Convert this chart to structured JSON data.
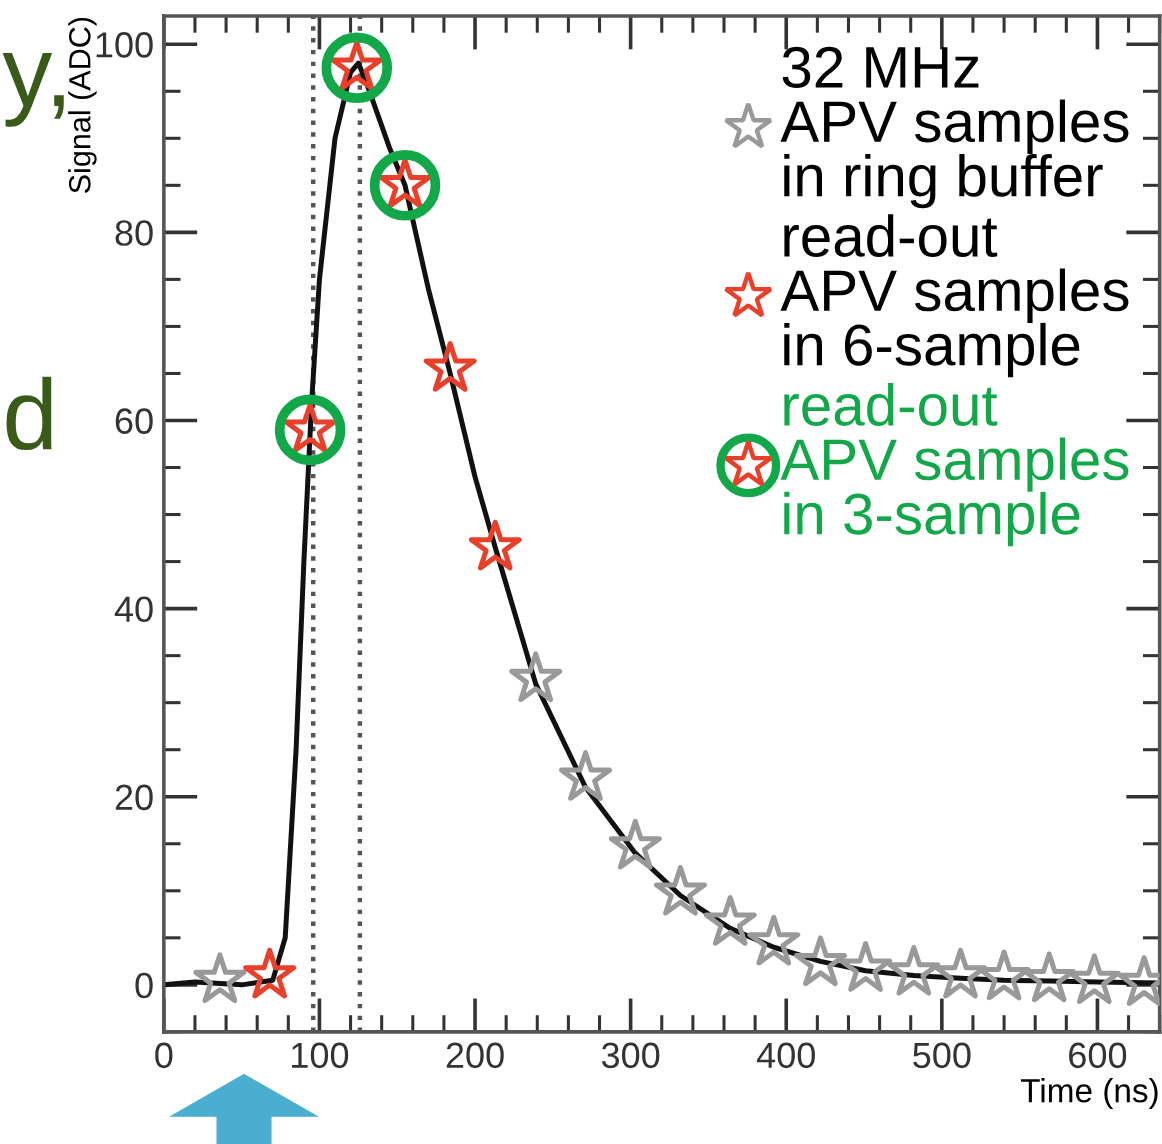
{
  "chart_data": {
    "type": "scatter",
    "xlabel": "Time (ns)",
    "ylabel": "Signal (ADC)",
    "xlim": [
      0,
      640
    ],
    "xticks": [
      0,
      100,
      200,
      300,
      400,
      500,
      600
    ],
    "ylim": [
      -5,
      103
    ],
    "yticks": [
      0,
      20,
      40,
      60,
      80,
      100
    ],
    "grid": false,
    "legend": "top right",
    "series": [
      {
        "type": "line",
        "color": "#111111",
        "marker": "none",
        "line_style": "solid",
        "x": [
          0,
          20,
          50,
          70,
          78,
          85,
          90,
          95,
          100,
          110,
          120,
          125,
          130,
          145,
          155,
          170,
          184,
          200,
          213,
          239,
          271,
          303,
          332,
          364,
          392,
          422,
          451,
          482,
          512,
          540,
          570,
          600,
          640
        ],
        "values": [
          0,
          0.3,
          0,
          0.5,
          5,
          25,
          45,
          62,
          75,
          90,
          97,
          98,
          96,
          89,
          85,
          74,
          65,
          54,
          46.5,
          32,
          21,
          14,
          9.5,
          6,
          4,
          2.5,
          1.5,
          1,
          0.7,
          0.5,
          0.4,
          0.3,
          0.2
        ]
      },
      {
        "name": "32 MHz\nAPV samples\nin ring buffer",
        "color": "#999999",
        "marker": "star",
        "x": [
          36,
          239,
          271,
          303,
          332,
          364,
          392,
          422,
          451,
          482,
          512,
          540,
          569,
          598,
          630
        ],
        "values": [
          0.5,
          32.5,
          22,
          14.7,
          9.8,
          6.6,
          4.5,
          2.3,
          1.7,
          1.3,
          1.0,
          0.8,
          0.6,
          0.4,
          0.2
        ]
      },
      {
        "name": "read-out\nAPV samples\nin 6-sample",
        "color": "#e8402a",
        "marker": "star",
        "x": [
          68,
          94,
          124,
          155,
          184,
          213
        ],
        "values": [
          1,
          59,
          97.5,
          85,
          65.5,
          46.5
        ]
      },
      {
        "name": "read-out\nAPV samples\nin 3-sample",
        "color": "#12a84a",
        "marker": "circle",
        "x": [
          94,
          124,
          155
        ],
        "values": [
          59,
          97.5,
          85
        ]
      }
    ],
    "ref_lines": [
      {
        "axis": "x",
        "value": 96,
        "line_style": "dotted",
        "color": "#555555"
      },
      {
        "axis": "x",
        "value": 126,
        "line_style": "dotted",
        "color": "#555555"
      }
    ],
    "annotations": [
      "y,",
      "d"
    ]
  }
}
